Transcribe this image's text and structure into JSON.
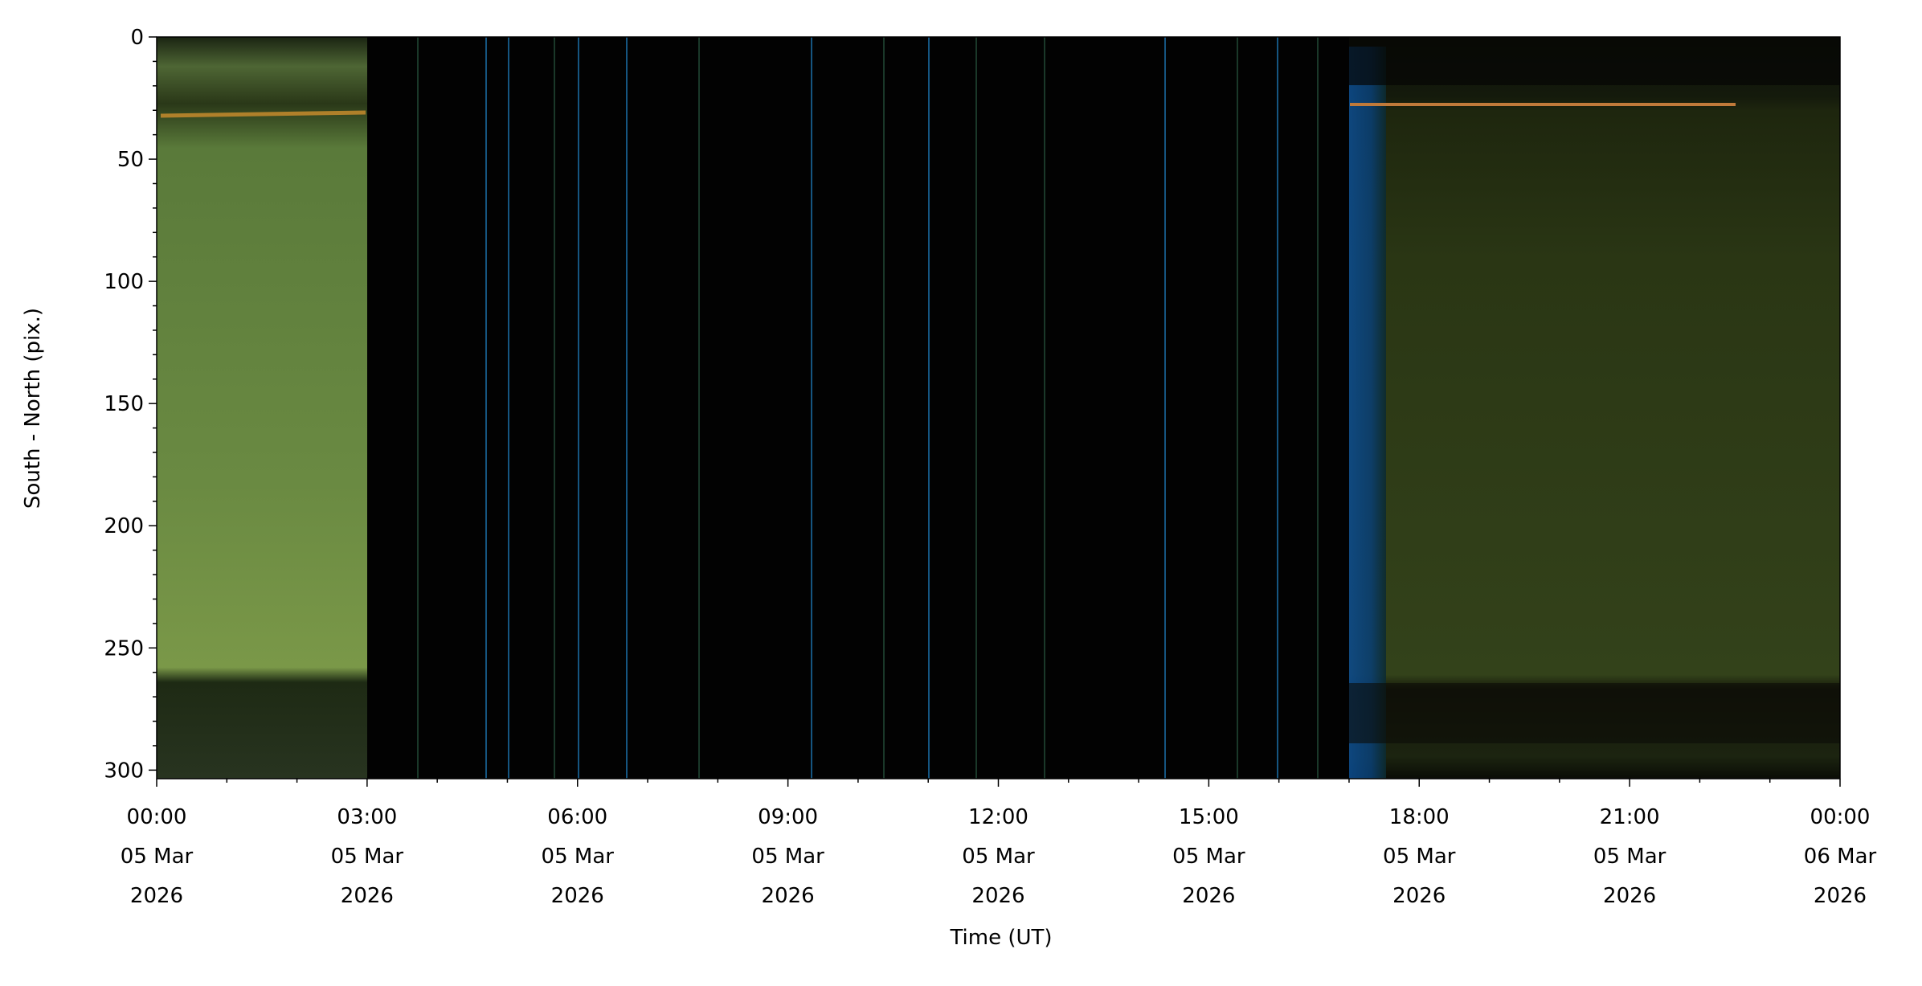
{
  "chart_data": {
    "type": "keogram",
    "xlabel": "Time (UT)",
    "ylabel": "South - North (pix.)",
    "xlim": [
      "2026-03-05T00:00",
      "2026-03-06T00:00"
    ],
    "xticks": [
      {
        "value": "2026-03-05T00:00",
        "label": "00:00\n05 Mar\n2026"
      },
      {
        "value": "2026-03-05T03:00",
        "label": "03:00\n05 Mar\n2026"
      },
      {
        "value": "2026-03-05T06:00",
        "label": "06:00\n05 Mar\n2026"
      },
      {
        "value": "2026-03-05T09:00",
        "label": "09:00\n05 Mar\n2026"
      },
      {
        "value": "2026-03-05T12:00",
        "label": "12:00\n05 Mar\n2026"
      },
      {
        "value": "2026-03-05T15:00",
        "label": "15:00\n05 Mar\n2026"
      },
      {
        "value": "2026-03-05T18:00",
        "label": "18:00\n05 Mar\n2026"
      },
      {
        "value": "2026-03-05T21:00",
        "label": "21:00\n05 Mar\n2026"
      },
      {
        "value": "2026-03-06T00:00",
        "label": "00:00\n06 Mar\n2026"
      }
    ],
    "xminorticks": [
      "2026-03-05T01:00",
      "2026-03-05T02:00",
      "2026-03-05T04:00",
      "2026-03-05T05:00",
      "2026-03-05T07:00",
      "2026-03-05T08:00",
      "2026-03-05T10:00",
      "2026-03-05T11:00",
      "2026-03-05T13:00",
      "2026-03-05T14:00",
      "2026-03-05T16:00",
      "2026-03-05T17:00",
      "2026-03-05T19:00",
      "2026-03-05T20:00",
      "2026-03-05T22:00",
      "2026-03-05T23:00"
    ],
    "ylim": [
      303.5,
      0
    ],
    "yticks": [
      0,
      50,
      100,
      150,
      200,
      250,
      300
    ],
    "yminorticks": [
      10,
      20,
      30,
      40,
      60,
      70,
      80,
      90,
      110,
      120,
      130,
      140,
      160,
      170,
      180,
      190,
      210,
      220,
      230,
      240,
      260,
      270,
      280,
      290
    ]
  }
}
